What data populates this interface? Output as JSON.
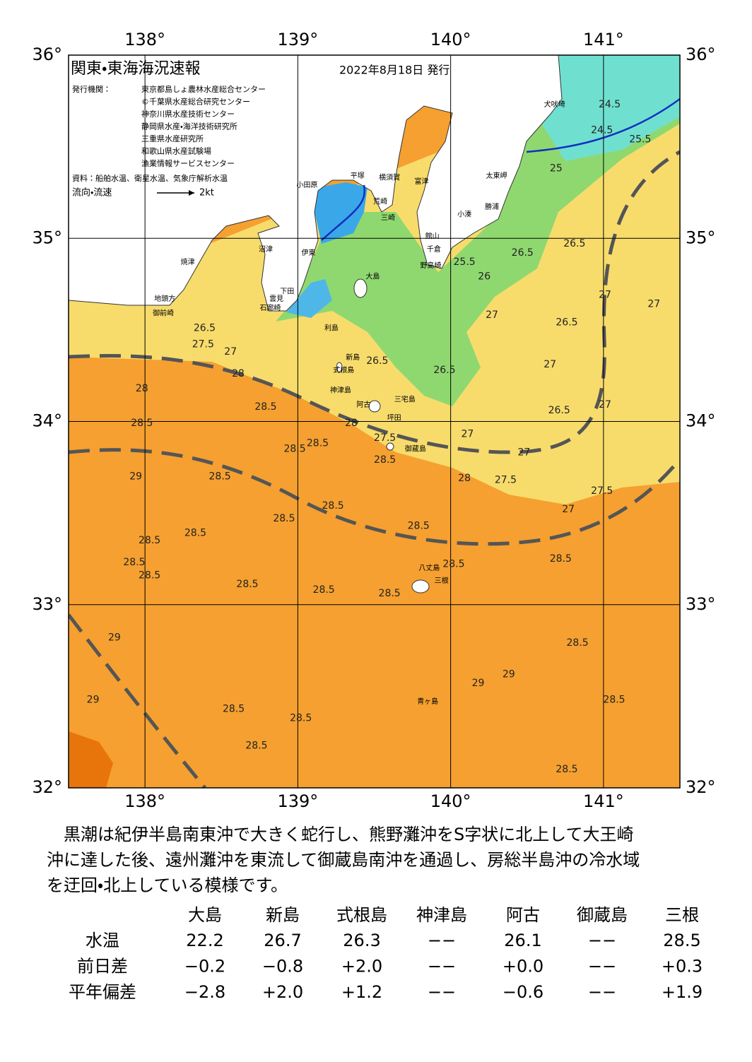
{
  "header": {
    "title": "関東・東海海況速報",
    "date": "2022年8月18日 発行",
    "issuer_label": "発行機関：",
    "issuers": [
      "東京都島しょ農林水産総合センター",
      "©千葉県水産総合研究センター",
      "神奈川県水産技術センター",
      "静岡県水産・海洋技術研究所",
      "三重県水産研究所",
      "和歌山県水産試験場",
      "漁業情報サービスセンター"
    ],
    "sources": "資料：船舶水温、衛星水温、気象庁解析水温",
    "current_legend": "流向・流速",
    "current_scale": "2kt"
  },
  "map": {
    "lon_range": [
      137.5,
      141.5
    ],
    "lat_range": [
      32,
      36
    ],
    "lon_ticks": [
      {
        "value": 138,
        "label": "138°"
      },
      {
        "value": 139,
        "label": "139°"
      },
      {
        "value": 140,
        "label": "140°"
      },
      {
        "value": 141,
        "label": "141°"
      }
    ],
    "lat_ticks": [
      {
        "value": 36,
        "label": "36°"
      },
      {
        "value": 35,
        "label": "35°"
      },
      {
        "value": 34,
        "label": "34°"
      },
      {
        "value": 33,
        "label": "33°"
      },
      {
        "value": 32,
        "label": "32°"
      }
    ],
    "contour_labels": [
      {
        "text": "24.5",
        "lon": 141.04,
        "lat": 35.73
      },
      {
        "text": "25.5",
        "lon": 141.24,
        "lat": 35.54
      },
      {
        "text": "24.5",
        "lon": 140.99,
        "lat": 35.59
      },
      {
        "text": "25",
        "lon": 140.69,
        "lat": 35.38
      },
      {
        "text": "26.5",
        "lon": 140.81,
        "lat": 34.97
      },
      {
        "text": "26.5",
        "lon": 140.47,
        "lat": 34.92
      },
      {
        "text": "25.5",
        "lon": 140.09,
        "lat": 34.87
      },
      {
        "text": "26",
        "lon": 140.22,
        "lat": 34.79
      },
      {
        "text": "27",
        "lon": 141.01,
        "lat": 34.69
      },
      {
        "text": "26.5",
        "lon": 140.76,
        "lat": 34.54
      },
      {
        "text": "27",
        "lon": 140.27,
        "lat": 34.58
      },
      {
        "text": "27",
        "lon": 140.65,
        "lat": 34.31
      },
      {
        "text": "26.5",
        "lon": 140.71,
        "lat": 34.06
      },
      {
        "text": "27",
        "lon": 141.01,
        "lat": 34.09
      },
      {
        "text": "27",
        "lon": 141.33,
        "lat": 34.64
      },
      {
        "text": "26.5",
        "lon": 138.39,
        "lat": 34.51
      },
      {
        "text": "27.5",
        "lon": 138.38,
        "lat": 34.42
      },
      {
        "text": "27",
        "lon": 138.56,
        "lat": 34.38
      },
      {
        "text": "28",
        "lon": 138.61,
        "lat": 34.26
      },
      {
        "text": "28",
        "lon": 137.98,
        "lat": 34.18
      },
      {
        "text": "28.5",
        "lon": 138.79,
        "lat": 34.08
      },
      {
        "text": "28.5",
        "lon": 137.98,
        "lat": 33.99
      },
      {
        "text": "28.5",
        "lon": 138.98,
        "lat": 33.85
      },
      {
        "text": "28.5",
        "lon": 139.13,
        "lat": 33.88
      },
      {
        "text": "26.5",
        "lon": 139.52,
        "lat": 34.33
      },
      {
        "text": "26.5",
        "lon": 139.96,
        "lat": 34.28
      },
      {
        "text": "27.5",
        "lon": 139.57,
        "lat": 33.91
      },
      {
        "text": "28.5",
        "lon": 139.57,
        "lat": 33.79
      },
      {
        "text": "28",
        "lon": 139.35,
        "lat": 33.99
      },
      {
        "text": "27",
        "lon": 140.11,
        "lat": 33.93
      },
      {
        "text": "27",
        "lon": 140.48,
        "lat": 33.83
      },
      {
        "text": "28",
        "lon": 140.09,
        "lat": 33.69
      },
      {
        "text": "27.5",
        "lon": 140.36,
        "lat": 33.68
      },
      {
        "text": "27.5",
        "lon": 140.99,
        "lat": 33.62
      },
      {
        "text": "27",
        "lon": 140.77,
        "lat": 33.52
      },
      {
        "text": "29",
        "lon": 137.94,
        "lat": 33.7
      },
      {
        "text": "28.5",
        "lon": 138.49,
        "lat": 33.7
      },
      {
        "text": "28.5",
        "lon": 139.23,
        "lat": 33.54
      },
      {
        "text": "28.5",
        "lon": 138.91,
        "lat": 33.47
      },
      {
        "text": "28.5",
        "lon": 139.79,
        "lat": 33.43
      },
      {
        "text": "28.5",
        "lon": 138.03,
        "lat": 33.35
      },
      {
        "text": "28.5",
        "lon": 138.33,
        "lat": 33.39
      },
      {
        "text": "28.5",
        "lon": 137.93,
        "lat": 33.23
      },
      {
        "text": "28.5",
        "lon": 138.03,
        "lat": 33.16
      },
      {
        "text": "28.5",
        "lon": 138.67,
        "lat": 33.11
      },
      {
        "text": "28.5",
        "lon": 139.17,
        "lat": 33.08
      },
      {
        "text": "28.5",
        "lon": 140.02,
        "lat": 33.22
      },
      {
        "text": "28.5",
        "lon": 140.72,
        "lat": 33.25
      },
      {
        "text": "28.5",
        "lon": 139.6,
        "lat": 33.06
      },
      {
        "text": "28.5",
        "lon": 140.83,
        "lat": 32.79
      },
      {
        "text": "29",
        "lon": 137.8,
        "lat": 32.82
      },
      {
        "text": "29",
        "lon": 140.18,
        "lat": 32.57
      },
      {
        "text": "29",
        "lon": 140.38,
        "lat": 32.62
      },
      {
        "text": "29",
        "lon": 137.66,
        "lat": 32.48
      },
      {
        "text": "28.5",
        "lon": 138.58,
        "lat": 32.43
      },
      {
        "text": "28.5",
        "lon": 139.02,
        "lat": 32.38
      },
      {
        "text": "28.5",
        "lon": 138.73,
        "lat": 32.23
      },
      {
        "text": "28.5",
        "lon": 141.07,
        "lat": 32.48
      },
      {
        "text": "28.5",
        "lon": 140.76,
        "lat": 32.1
      }
    ],
    "places": [
      {
        "name": "小田原",
        "lon": 139.06,
        "lat": 35.29
      },
      {
        "name": "平塚",
        "lon": 139.39,
        "lat": 35.34
      },
      {
        "name": "横須賀",
        "lon": 139.6,
        "lat": 35.33
      },
      {
        "name": "富津",
        "lon": 139.81,
        "lat": 35.31
      },
      {
        "name": "犬吠埼",
        "lon": 140.68,
        "lat": 35.73
      },
      {
        "name": "太東岬",
        "lon": 140.3,
        "lat": 35.34
      },
      {
        "name": "勝浦",
        "lon": 140.27,
        "lat": 35.17
      },
      {
        "name": "小湊",
        "lon": 140.09,
        "lat": 35.13
      },
      {
        "name": "館山",
        "lon": 139.88,
        "lat": 35.01
      },
      {
        "name": "千倉",
        "lon": 139.89,
        "lat": 34.94
      },
      {
        "name": "野島崎",
        "lon": 139.87,
        "lat": 34.85
      },
      {
        "name": "三崎",
        "lon": 139.59,
        "lat": 35.11
      },
      {
        "name": "荒崎",
        "lon": 139.54,
        "lat": 35.2
      },
      {
        "name": "沼津",
        "lon": 138.79,
        "lat": 34.94
      },
      {
        "name": "伊東",
        "lon": 139.07,
        "lat": 34.92
      },
      {
        "name": "焼津",
        "lon": 138.28,
        "lat": 34.87
      },
      {
        "name": "大島",
        "lon": 139.49,
        "lat": 34.79
      },
      {
        "name": "下田",
        "lon": 138.93,
        "lat": 34.71
      },
      {
        "name": "雲見",
        "lon": 138.86,
        "lat": 34.67
      },
      {
        "name": "石廊崎",
        "lon": 138.82,
        "lat": 34.62
      },
      {
        "name": "地頭方",
        "lon": 138.13,
        "lat": 34.67
      },
      {
        "name": "御前崎",
        "lon": 138.12,
        "lat": 34.59
      },
      {
        "name": "利島",
        "lon": 139.22,
        "lat": 34.51
      },
      {
        "name": "新島",
        "lon": 139.36,
        "lat": 34.35
      },
      {
        "name": "式根島",
        "lon": 139.3,
        "lat": 34.28
      },
      {
        "name": "神津島",
        "lon": 139.28,
        "lat": 34.17
      },
      {
        "name": "三宅島",
        "lon": 139.7,
        "lat": 34.12
      },
      {
        "name": "阿古",
        "lon": 139.43,
        "lat": 34.09
      },
      {
        "name": "坪田",
        "lon": 139.63,
        "lat": 34.02
      },
      {
        "name": "御蔵島",
        "lon": 139.77,
        "lat": 33.85
      },
      {
        "name": "八丈島",
        "lon": 139.86,
        "lat": 33.2
      },
      {
        "name": "三根",
        "lon": 139.94,
        "lat": 33.13
      },
      {
        "name": "青ヶ島",
        "lon": 139.85,
        "lat": 32.47
      }
    ]
  },
  "summary": [
    "黒潮は紀伊半島南東沖で大きく蛇行し、熊野灘沖をS字状に北上して大王崎",
    "沖に達した後、遠州灘沖を東流して御蔵島南沖を通過し、房総半島沖の冷水域",
    "を迂回・北上している模様です。"
  ],
  "table": {
    "columns": [
      "大島",
      "新島",
      "式根島",
      "神津島",
      "阿古",
      "御蔵島",
      "三根"
    ],
    "rows": [
      {
        "label": "水温",
        "cells": [
          "22.2",
          "26.7",
          "26.3",
          "−−",
          "26.1",
          "−−",
          "28.5"
        ]
      },
      {
        "label": "前日差",
        "cells": [
          "−0.2",
          "−0.8",
          "+2.0",
          "−−",
          "+0.0",
          "−−",
          "+0.3"
        ]
      },
      {
        "label": "平年偏差",
        "cells": [
          "−2.8",
          "+2.0",
          "+1.2",
          "−−",
          "−0.6",
          "−−",
          "+1.9"
        ]
      }
    ]
  }
}
